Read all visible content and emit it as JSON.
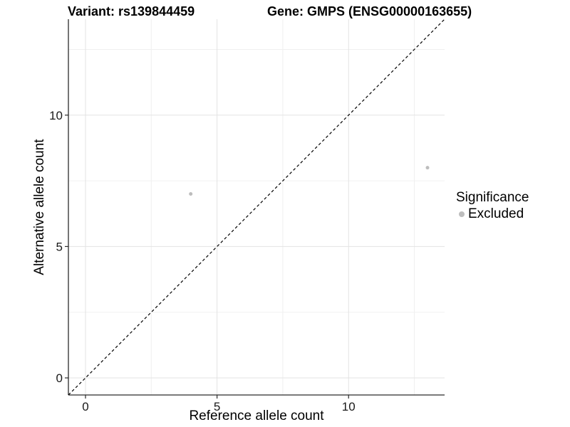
{
  "chart_data": {
    "type": "scatter",
    "titles": {
      "left": "Variant: rs139844459",
      "right": "Gene: GMPS (ENSG00000163655)"
    },
    "xlabel": "Reference allele count",
    "ylabel": "Alternative allele count",
    "xlim": [
      -0.65,
      13.65
    ],
    "ylim": [
      -0.65,
      13.65
    ],
    "xticks": [
      0,
      5,
      10
    ],
    "yticks": [
      0,
      5,
      10
    ],
    "minor_xticks": [
      2.5,
      7.5,
      12.5
    ],
    "minor_yticks": [
      2.5,
      7.5,
      12.5
    ],
    "grid": "major+minor",
    "identity_line": {
      "style": "dashed",
      "from": [
        -0.65,
        -0.65
      ],
      "to": [
        13.65,
        13.65
      ],
      "color": "#000000"
    },
    "series": [
      {
        "name": "Excluded",
        "color": "#bdbdbd",
        "points": [
          [
            4,
            7
          ],
          [
            13,
            8
          ]
        ]
      }
    ],
    "legend": {
      "title": "Significance",
      "position": "right",
      "items": [
        {
          "label": "Excluded",
          "marker": "circle",
          "color": "#bdbdbd"
        }
      ]
    }
  },
  "colors": {
    "background": "#ffffff",
    "grid_major": "#e3e3e3",
    "grid_minor": "#f0f0f0",
    "axis_line": "#2b2b2b",
    "tick": "#2b2b2b",
    "tick_label": "#1a1a1a",
    "title_text": "#000000",
    "point": "#bdbdbd",
    "dashed_line": "#000000"
  }
}
